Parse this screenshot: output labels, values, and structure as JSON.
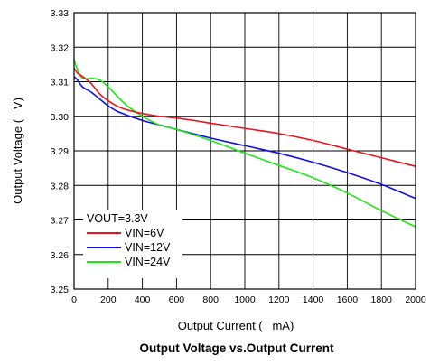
{
  "chart_data": {
    "type": "line",
    "title": "Output Voltage vs.Output Current",
    "xlabel": "Output Current (   mA)",
    "ylabel": "Output Voltage (   V)",
    "xlim": [
      0,
      2000
    ],
    "ylim": [
      3.25,
      3.33
    ],
    "x_ticks": [
      "0",
      "200",
      "400",
      "600",
      "800",
      "1000",
      "1200",
      "1400",
      "1600",
      "1800",
      "2000"
    ],
    "y_ticks": [
      "3.25",
      "3.26",
      "3.27",
      "3.28",
      "3.29",
      "3.30",
      "3.31",
      "3.32",
      "3.33"
    ],
    "grid": true,
    "legend_position": "bottom-left",
    "legend_title": "VOUT=3.3V",
    "series": [
      {
        "name": "VIN=6V",
        "color": "#e8141e",
        "points": [
          [
            0,
            3.314
          ],
          [
            20,
            3.3125
          ],
          [
            50,
            3.3115
          ],
          [
            100,
            3.3095
          ],
          [
            150,
            3.3065
          ],
          [
            200,
            3.3045
          ],
          [
            250,
            3.303
          ],
          [
            300,
            3.302
          ],
          [
            400,
            3.3008
          ],
          [
            500,
            3.3
          ],
          [
            600,
            3.2995
          ],
          [
            700,
            3.2988
          ],
          [
            800,
            3.298
          ],
          [
            1000,
            3.2965
          ],
          [
            1200,
            3.295
          ],
          [
            1400,
            3.293
          ],
          [
            1600,
            3.2905
          ],
          [
            1800,
            3.288
          ],
          [
            2000,
            3.2855
          ]
        ]
      },
      {
        "name": "VIN=12V",
        "color": "#1010e6",
        "points": [
          [
            0,
            3.3115
          ],
          [
            20,
            3.3105
          ],
          [
            50,
            3.3085
          ],
          [
            100,
            3.307
          ],
          [
            150,
            3.305
          ],
          [
            200,
            3.303
          ],
          [
            250,
            3.3015
          ],
          [
            300,
            3.3005
          ],
          [
            400,
            3.2988
          ],
          [
            500,
            3.2975
          ],
          [
            600,
            3.2962
          ],
          [
            800,
            3.2937
          ],
          [
            1000,
            3.2915
          ],
          [
            1200,
            3.2893
          ],
          [
            1400,
            3.2867
          ],
          [
            1600,
            3.2837
          ],
          [
            1800,
            3.2803
          ],
          [
            2000,
            3.2762
          ]
        ]
      },
      {
        "name": "VIN=24V",
        "color": "#1ee614",
        "points": [
          [
            0,
            3.3165
          ],
          [
            20,
            3.3135
          ],
          [
            50,
            3.311
          ],
          [
            100,
            3.311
          ],
          [
            150,
            3.3105
          ],
          [
            200,
            3.3085
          ],
          [
            300,
            3.3035
          ],
          [
            400,
            3.3
          ],
          [
            500,
            3.2975
          ],
          [
            600,
            3.2962
          ],
          [
            800,
            3.293
          ],
          [
            1000,
            3.2893
          ],
          [
            1200,
            3.2858
          ],
          [
            1400,
            3.2822
          ],
          [
            1600,
            3.2778
          ],
          [
            1800,
            3.2727
          ],
          [
            2000,
            3.268
          ]
        ]
      }
    ]
  }
}
